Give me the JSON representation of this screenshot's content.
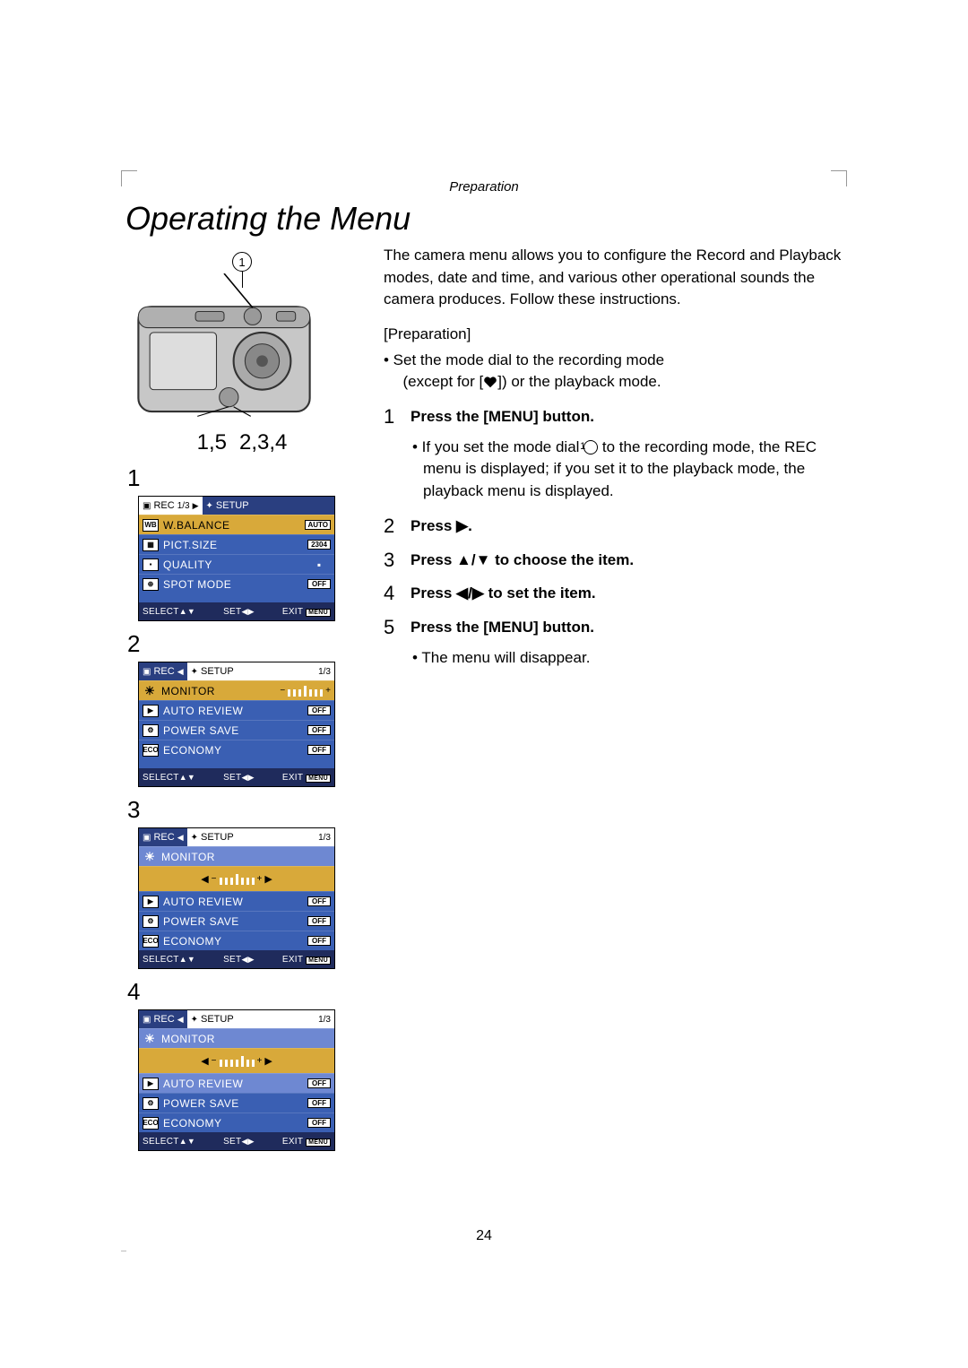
{
  "section_label": "Preparation",
  "title": "Operating the Menu",
  "camera_callout_num": "1",
  "under_camera_left": "1,5",
  "under_camera_right": "2,3,4",
  "panels": [
    {
      "step": "1",
      "tabs": {
        "left": {
          "icon": "📷",
          "label": "REC",
          "page": "1/3",
          "active": true
        },
        "right": {
          "icon": "🔧",
          "label": "SETUP",
          "active": false
        }
      },
      "rows": [
        {
          "icon": "WB",
          "label": "W.BALANCE",
          "val": "AUTO",
          "sel": "gold"
        },
        {
          "icon": "▦",
          "label": "PICT.SIZE",
          "val": "2304"
        },
        {
          "icon": "▪",
          "label": "QUALITY",
          "val": "▪",
          "valPlain": true
        },
        {
          "icon": "⊕",
          "label": "SPOT MODE",
          "val": "OFF"
        }
      ],
      "spacer": true
    },
    {
      "step": "2",
      "tabs": {
        "left": {
          "icon": "📷",
          "label": "REC",
          "active": false
        },
        "right": {
          "icon": "🔧",
          "label": "SETUP",
          "page": "1/3",
          "active": true
        }
      },
      "rows": [
        {
          "icon": "☀",
          "iconPlain": true,
          "label": "MONITOR",
          "slider": true,
          "sel": "gold"
        },
        {
          "icon": "▶",
          "label": "AUTO REVIEW",
          "val": "OFF"
        },
        {
          "icon": "⚙",
          "label": "POWER SAVE",
          "val": "OFF"
        },
        {
          "icon": "ECO",
          "label": "ECONOMY",
          "val": "OFF"
        }
      ],
      "spacer": true
    },
    {
      "step": "3",
      "tabs": {
        "left": {
          "icon": "📷",
          "label": "REC",
          "active": false
        },
        "right": {
          "icon": "🔧",
          "label": "SETUP",
          "page": "1/3",
          "active": true
        }
      },
      "rows": [
        {
          "icon": "☀",
          "iconPlain": true,
          "label": "MONITOR",
          "sel": "blue"
        },
        {
          "slider": true,
          "sliderWide": true,
          "sel": "gold"
        },
        {
          "icon": "▶",
          "label": "AUTO REVIEW",
          "val": "OFF"
        },
        {
          "icon": "⚙",
          "label": "POWER SAVE",
          "val": "OFF"
        },
        {
          "icon": "ECO",
          "label": "ECONOMY",
          "val": "OFF"
        }
      ]
    },
    {
      "step": "4",
      "tabs": {
        "left": {
          "icon": "📷",
          "label": "REC",
          "active": false
        },
        "right": {
          "icon": "🔧",
          "label": "SETUP",
          "page": "1/3",
          "active": true
        }
      },
      "rows": [
        {
          "icon": "☀",
          "iconPlain": true,
          "label": "MONITOR",
          "sel": "blue"
        },
        {
          "slider": true,
          "sliderWide": true,
          "sel": "gold",
          "shifted": true
        },
        {
          "icon": "▶",
          "label": "AUTO REVIEW",
          "val": "OFF",
          "sel": "blue"
        },
        {
          "icon": "⚙",
          "label": "POWER SAVE",
          "val": "OFF"
        },
        {
          "icon": "ECO",
          "label": "ECONOMY",
          "val": "OFF"
        }
      ]
    }
  ],
  "footer": {
    "select": "SELECT",
    "set": "SET",
    "exit": "EXIT",
    "menu": "MENU"
  },
  "intro": "The camera menu allows you to configure the Record and Playback modes, date and time, and various other operational sounds the camera produces. Follow these instructions.",
  "prep_head": "[Preparation]",
  "prep_bullet_a": "• Set the mode dial to the recording mode",
  "prep_bullet_b_pre": "(except for [",
  "prep_bullet_b_post": "]) or the playback mode.",
  "steps": [
    {
      "n": "1",
      "t": "Press the [MENU] button."
    },
    {
      "n": "2",
      "t": "Press ▶."
    },
    {
      "n": "3",
      "t": "Press ▲/▼ to choose the item."
    },
    {
      "n": "4",
      "t": "Press ◀/▶ to set the item."
    },
    {
      "n": "5",
      "t": "Press the [MENU] button."
    }
  ],
  "step1_sub_pre": "• If you set the mode dial ",
  "step1_sub_num": "1",
  "step1_sub_post": " to the recording mode,  the REC menu is displayed; if you set it to the playback mode, the playback menu is displayed.",
  "step5_sub": "• The menu will disappear.",
  "page_number": "24",
  "colors": {
    "menu_bg": "#3a5fb3",
    "menu_dark": "#1f2b5c",
    "gold": "#d8a93a",
    "selblue": "#6e88d2"
  }
}
